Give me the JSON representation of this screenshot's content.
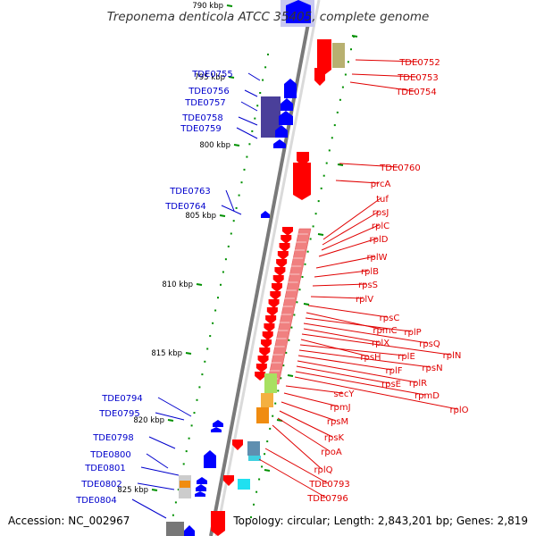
{
  "title": "Treponema denticola ATCC 35405, complete genome",
  "accession": "Accession: NC_002967",
  "genome_info": "Topology: circular; Length: 2,843,201 bp; Genes: 2,819",
  "colors": {
    "backbone": "#7a7a7a",
    "gc_dots": "#009000",
    "forward_gene": "#ff0000",
    "reverse_gene": "#0000ff",
    "rrn_operon": "#f08080",
    "forward_label": "#e00000",
    "reverse_label": "#0000cc"
  },
  "kbp_markers": [
    "790 kbp",
    "795 kbp",
    "800 kbp",
    "805 kbp",
    "810 kbp",
    "815 kbp",
    "820 kbp",
    "825 kbp"
  ],
  "forward_genes": [
    "TDE0752",
    "TDE0753",
    "TDE0754",
    "TDE0760",
    "prcA",
    "tuf",
    "rpsJ",
    "rplC",
    "rplD",
    "rplW",
    "rplB",
    "rpsS",
    "rplV",
    "rpsC",
    "rpmC",
    "rplP",
    "rpsQ",
    "rplX",
    "rplN",
    "rpsH",
    "rplE",
    "rpsN",
    "rplF",
    "rplR",
    "rpsE",
    "rpmD",
    "rplO",
    "secY",
    "rpmJ",
    "rpsM",
    "rpsK",
    "rpoA",
    "rplQ",
    "TDE0793",
    "TDE0796"
  ],
  "reverse_genes": [
    "TDE0755",
    "TDE0756",
    "TDE0757",
    "TDE0758",
    "TDE0759",
    "TDE0763",
    "TDE0764",
    "TDE0794",
    "TDE0795",
    "TDE0798",
    "TDE0800",
    "TDE0801",
    "TDE0802",
    "TDE0804"
  ]
}
